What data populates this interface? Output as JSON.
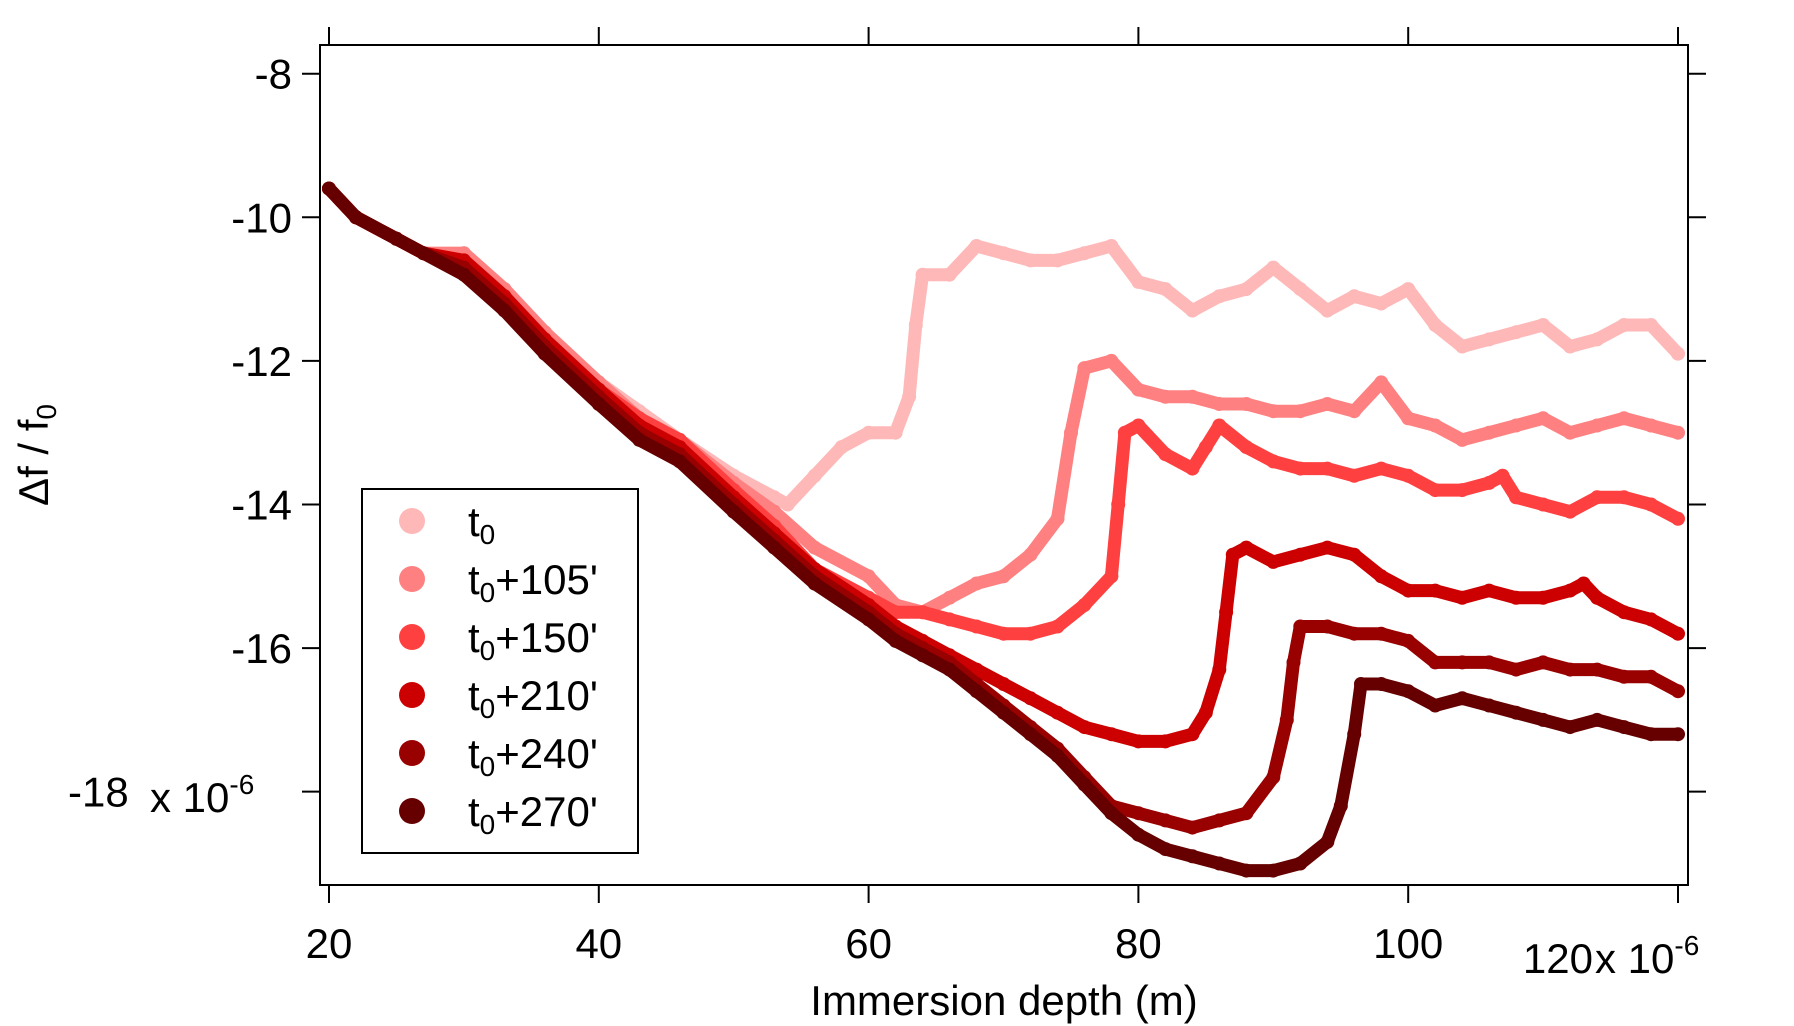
{
  "chart_data": {
    "type": "scatter",
    "title": "",
    "xlabel": "Immersion depth (m)",
    "ylabel": "Δf / f",
    "ylabel_sub": "0",
    "x_scale_note": "x 10",
    "x_scale_exp": "-6",
    "y_scale_note": "x 10",
    "y_scale_exp": "-6",
    "xlim": [
      20,
      120
    ],
    "ylim": [
      -19.3,
      -7.6
    ],
    "x_ticks": [
      20,
      40,
      60,
      80,
      100,
      120
    ],
    "x_tick_labels": [
      "20",
      "40",
      "60",
      "80",
      "100",
      "120"
    ],
    "y_ticks": [
      -8,
      -10,
      -12,
      -14,
      -16,
      -18
    ],
    "y_tick_labels": [
      "-8",
      "-10",
      "-12",
      "-14",
      "-16",
      "-18"
    ],
    "legend_position": "bottom-left",
    "series": [
      {
        "name": "t0",
        "label_base": "t",
        "label_sub": "0",
        "label_suffix": "",
        "color": "#ffb8b8",
        "points": [
          [
            20,
            -9.6
          ],
          [
            22,
            -10.0
          ],
          [
            25,
            -10.3
          ],
          [
            27,
            -10.5
          ],
          [
            30,
            -10.5
          ],
          [
            33,
            -11.0
          ],
          [
            36,
            -11.6
          ],
          [
            40,
            -12.3
          ],
          [
            43,
            -12.7
          ],
          [
            46,
            -13.1
          ],
          [
            50,
            -13.6
          ],
          [
            53,
            -13.9
          ],
          [
            54,
            -14.0
          ],
          [
            56,
            -13.6
          ],
          [
            58,
            -13.2
          ],
          [
            60,
            -13.0
          ],
          [
            62,
            -13.0
          ],
          [
            63,
            -12.5
          ],
          [
            63.5,
            -11.5
          ],
          [
            64,
            -10.8
          ],
          [
            66,
            -10.8
          ],
          [
            68,
            -10.4
          ],
          [
            70,
            -10.5
          ],
          [
            72,
            -10.6
          ],
          [
            74,
            -10.6
          ],
          [
            76,
            -10.5
          ],
          [
            78,
            -10.4
          ],
          [
            80,
            -10.9
          ],
          [
            82,
            -11.0
          ],
          [
            84,
            -11.3
          ],
          [
            86,
            -11.1
          ],
          [
            88,
            -11.0
          ],
          [
            90,
            -10.7
          ],
          [
            92,
            -11.0
          ],
          [
            94,
            -11.3
          ],
          [
            96,
            -11.1
          ],
          [
            98,
            -11.2
          ],
          [
            100,
            -11.0
          ],
          [
            102,
            -11.5
          ],
          [
            104,
            -11.8
          ],
          [
            106,
            -11.7
          ],
          [
            108,
            -11.6
          ],
          [
            110,
            -11.5
          ],
          [
            112,
            -11.8
          ],
          [
            114,
            -11.7
          ],
          [
            116,
            -11.5
          ],
          [
            118,
            -11.5
          ],
          [
            120,
            -11.9
          ]
        ]
      },
      {
        "name": "t0+105'",
        "label_base": "t",
        "label_sub": "0",
        "label_suffix": "+105'",
        "color": "#ff8080",
        "points": [
          [
            20,
            -9.6
          ],
          [
            22,
            -10.0
          ],
          [
            25,
            -10.3
          ],
          [
            27,
            -10.5
          ],
          [
            30,
            -10.5
          ],
          [
            33,
            -11.0
          ],
          [
            36,
            -11.6
          ],
          [
            40,
            -12.3
          ],
          [
            43,
            -12.8
          ],
          [
            46,
            -13.1
          ],
          [
            50,
            -13.7
          ],
          [
            53,
            -14.1
          ],
          [
            56,
            -14.6
          ],
          [
            60,
            -15.0
          ],
          [
            62,
            -15.4
          ],
          [
            64,
            -15.5
          ],
          [
            66,
            -15.3
          ],
          [
            68,
            -15.1
          ],
          [
            70,
            -15.0
          ],
          [
            72,
            -14.7
          ],
          [
            74,
            -14.2
          ],
          [
            75,
            -13.0
          ],
          [
            76,
            -12.1
          ],
          [
            78,
            -12.0
          ],
          [
            80,
            -12.4
          ],
          [
            82,
            -12.5
          ],
          [
            84,
            -12.5
          ],
          [
            86,
            -12.6
          ],
          [
            88,
            -12.6
          ],
          [
            90,
            -12.7
          ],
          [
            92,
            -12.7
          ],
          [
            94,
            -12.6
          ],
          [
            96,
            -12.7
          ],
          [
            98,
            -12.3
          ],
          [
            100,
            -12.8
          ],
          [
            102,
            -12.9
          ],
          [
            104,
            -13.1
          ],
          [
            106,
            -13.0
          ],
          [
            108,
            -12.9
          ],
          [
            110,
            -12.8
          ],
          [
            112,
            -13.0
          ],
          [
            114,
            -12.9
          ],
          [
            116,
            -12.8
          ],
          [
            118,
            -12.9
          ],
          [
            120,
            -13.0
          ]
        ]
      },
      {
        "name": "t0+150'",
        "label_base": "t",
        "label_sub": "0",
        "label_suffix": "+150'",
        "color": "#ff4040",
        "points": [
          [
            20,
            -9.6
          ],
          [
            22,
            -10.0
          ],
          [
            25,
            -10.3
          ],
          [
            27,
            -10.5
          ],
          [
            30,
            -10.6
          ],
          [
            33,
            -11.1
          ],
          [
            36,
            -11.7
          ],
          [
            40,
            -12.4
          ],
          [
            43,
            -12.8
          ],
          [
            46,
            -13.1
          ],
          [
            50,
            -13.8
          ],
          [
            53,
            -14.3
          ],
          [
            56,
            -14.9
          ],
          [
            60,
            -15.3
          ],
          [
            62,
            -15.5
          ],
          [
            64,
            -15.5
          ],
          [
            66,
            -15.6
          ],
          [
            68,
            -15.7
          ],
          [
            70,
            -15.8
          ],
          [
            72,
            -15.8
          ],
          [
            74,
            -15.7
          ],
          [
            76,
            -15.4
          ],
          [
            78,
            -15.0
          ],
          [
            78.5,
            -14.0
          ],
          [
            79,
            -13.0
          ],
          [
            80,
            -12.9
          ],
          [
            82,
            -13.3
          ],
          [
            84,
            -13.5
          ],
          [
            85,
            -13.2
          ],
          [
            86,
            -12.9
          ],
          [
            88,
            -13.2
          ],
          [
            90,
            -13.4
          ],
          [
            92,
            -13.5
          ],
          [
            94,
            -13.5
          ],
          [
            96,
            -13.6
          ],
          [
            98,
            -13.5
          ],
          [
            100,
            -13.6
          ],
          [
            102,
            -13.8
          ],
          [
            104,
            -13.8
          ],
          [
            106,
            -13.7
          ],
          [
            107,
            -13.6
          ],
          [
            108,
            -13.9
          ],
          [
            110,
            -14.0
          ],
          [
            112,
            -14.1
          ],
          [
            114,
            -13.9
          ],
          [
            116,
            -13.9
          ],
          [
            118,
            -14.0
          ],
          [
            120,
            -14.2
          ]
        ]
      },
      {
        "name": "t0+210'",
        "label_base": "t",
        "label_sub": "0",
        "label_suffix": "+210'",
        "color": "#cc0000",
        "points": [
          [
            20,
            -9.6
          ],
          [
            22,
            -10.0
          ],
          [
            25,
            -10.3
          ],
          [
            27,
            -10.5
          ],
          [
            30,
            -10.6
          ],
          [
            33,
            -11.1
          ],
          [
            36,
            -11.7
          ],
          [
            40,
            -12.4
          ],
          [
            43,
            -12.9
          ],
          [
            46,
            -13.2
          ],
          [
            50,
            -13.9
          ],
          [
            53,
            -14.4
          ],
          [
            56,
            -14.9
          ],
          [
            60,
            -15.4
          ],
          [
            62,
            -15.7
          ],
          [
            64,
            -15.9
          ],
          [
            66,
            -16.1
          ],
          [
            68,
            -16.3
          ],
          [
            70,
            -16.5
          ],
          [
            72,
            -16.7
          ],
          [
            74,
            -16.9
          ],
          [
            76,
            -17.1
          ],
          [
            78,
            -17.2
          ],
          [
            80,
            -17.3
          ],
          [
            82,
            -17.3
          ],
          [
            84,
            -17.2
          ],
          [
            85,
            -16.9
          ],
          [
            86,
            -16.3
          ],
          [
            86.5,
            -15.5
          ],
          [
            87,
            -14.7
          ],
          [
            88,
            -14.6
          ],
          [
            90,
            -14.8
          ],
          [
            92,
            -14.7
          ],
          [
            94,
            -14.6
          ],
          [
            96,
            -14.7
          ],
          [
            98,
            -15.0
          ],
          [
            100,
            -15.2
          ],
          [
            102,
            -15.2
          ],
          [
            104,
            -15.3
          ],
          [
            106,
            -15.2
          ],
          [
            108,
            -15.3
          ],
          [
            110,
            -15.3
          ],
          [
            112,
            -15.2
          ],
          [
            113,
            -15.1
          ],
          [
            114,
            -15.3
          ],
          [
            116,
            -15.5
          ],
          [
            118,
            -15.6
          ],
          [
            120,
            -15.8
          ]
        ]
      },
      {
        "name": "t0+240'",
        "label_base": "t",
        "label_sub": "0",
        "label_suffix": "+240'",
        "color": "#990000",
        "points": [
          [
            20,
            -9.6
          ],
          [
            22,
            -10.0
          ],
          [
            25,
            -10.3
          ],
          [
            27,
            -10.5
          ],
          [
            30,
            -10.7
          ],
          [
            33,
            -11.2
          ],
          [
            36,
            -11.8
          ],
          [
            40,
            -12.5
          ],
          [
            43,
            -13.0
          ],
          [
            46,
            -13.3
          ],
          [
            50,
            -14.0
          ],
          [
            53,
            -14.5
          ],
          [
            56,
            -15.0
          ],
          [
            60,
            -15.5
          ],
          [
            62,
            -15.8
          ],
          [
            64,
            -16.0
          ],
          [
            66,
            -16.2
          ],
          [
            68,
            -16.5
          ],
          [
            70,
            -16.8
          ],
          [
            72,
            -17.1
          ],
          [
            74,
            -17.4
          ],
          [
            76,
            -17.8
          ],
          [
            78,
            -18.2
          ],
          [
            80,
            -18.3
          ],
          [
            82,
            -18.4
          ],
          [
            84,
            -18.5
          ],
          [
            86,
            -18.4
          ],
          [
            88,
            -18.3
          ],
          [
            90,
            -17.8
          ],
          [
            91,
            -17.0
          ],
          [
            91.5,
            -16.2
          ],
          [
            92,
            -15.7
          ],
          [
            94,
            -15.7
          ],
          [
            96,
            -15.8
          ],
          [
            98,
            -15.8
          ],
          [
            100,
            -15.9
          ],
          [
            102,
            -16.2
          ],
          [
            104,
            -16.2
          ],
          [
            106,
            -16.2
          ],
          [
            108,
            -16.3
          ],
          [
            110,
            -16.2
          ],
          [
            112,
            -16.3
          ],
          [
            114,
            -16.3
          ],
          [
            116,
            -16.4
          ],
          [
            118,
            -16.4
          ],
          [
            120,
            -16.6
          ]
        ]
      },
      {
        "name": "t0+270'",
        "label_base": "t",
        "label_sub": "0",
        "label_suffix": "+270'",
        "color": "#660000",
        "points": [
          [
            20,
            -9.6
          ],
          [
            22,
            -10.0
          ],
          [
            25,
            -10.3
          ],
          [
            27,
            -10.5
          ],
          [
            30,
            -10.8
          ],
          [
            33,
            -11.3
          ],
          [
            36,
            -11.9
          ],
          [
            40,
            -12.6
          ],
          [
            43,
            -13.1
          ],
          [
            46,
            -13.4
          ],
          [
            50,
            -14.1
          ],
          [
            53,
            -14.6
          ],
          [
            56,
            -15.1
          ],
          [
            60,
            -15.6
          ],
          [
            62,
            -15.9
          ],
          [
            64,
            -16.1
          ],
          [
            66,
            -16.3
          ],
          [
            68,
            -16.6
          ],
          [
            70,
            -16.9
          ],
          [
            72,
            -17.2
          ],
          [
            74,
            -17.5
          ],
          [
            76,
            -17.9
          ],
          [
            78,
            -18.3
          ],
          [
            80,
            -18.6
          ],
          [
            82,
            -18.8
          ],
          [
            84,
            -18.9
          ],
          [
            86,
            -19.0
          ],
          [
            88,
            -19.1
          ],
          [
            90,
            -19.1
          ],
          [
            92,
            -19.0
          ],
          [
            94,
            -18.7
          ],
          [
            95,
            -18.2
          ],
          [
            96,
            -17.2
          ],
          [
            96.5,
            -16.5
          ],
          [
            98,
            -16.5
          ],
          [
            100,
            -16.6
          ],
          [
            102,
            -16.8
          ],
          [
            104,
            -16.7
          ],
          [
            106,
            -16.8
          ],
          [
            108,
            -16.9
          ],
          [
            110,
            -17.0
          ],
          [
            112,
            -17.1
          ],
          [
            114,
            -17.0
          ],
          [
            116,
            -17.1
          ],
          [
            118,
            -17.2
          ],
          [
            120,
            -17.2
          ]
        ]
      }
    ]
  }
}
